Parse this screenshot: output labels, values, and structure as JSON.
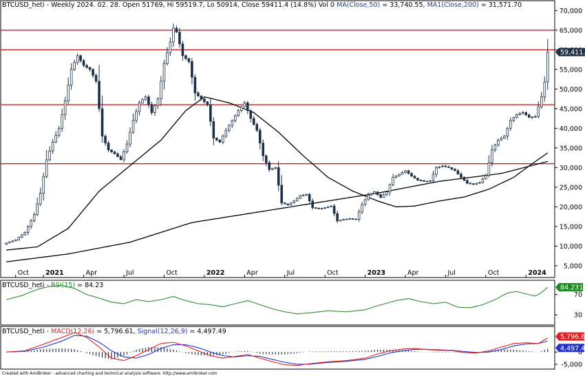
{
  "header": {
    "symbol": "BTCUSD_heti",
    "info": " - Weekly 2024. 02. 28. Open 51769, Hi 59519.7, Lo 50914, Close 59411.4 (14.8%) Vol 0 ",
    "ma50_label": "MA(Close,50)",
    "ma50_value": " = 33,740.55, ",
    "ma200_label": "MA1(Close,200)",
    "ma200_value": " = 31,571.70"
  },
  "colors": {
    "candle_up": "#ffffff",
    "candle_down": "#1e3048",
    "candle_outline": "#1e3048",
    "ma": "#000000",
    "hline": "#d21e1e",
    "rsi": "#2e8b2e",
    "macd": "#dd2222",
    "signal": "#2233cc",
    "hist": "#1e3048",
    "price_badge": "#1e3048",
    "rsi_badge": "#1a8a1a",
    "macd_badge": "#dd2222",
    "signal_badge": "#2233cc"
  },
  "rsi_header": {
    "symbol": "BTCUSD_heti",
    "sep": " - ",
    "label": "RSI(15)",
    "value": " = 84.23"
  },
  "macd_header": {
    "symbol": "BTCUSD_heti",
    "sep": " - ",
    "macd_label": "MACD(12,26)",
    "macd_value": " = 5,796.61, ",
    "signal_label": "Signal(12,26,9)",
    "signal_value": " = 4,497.49"
  },
  "footer": "Created with AmiBroker - advanced charting and technical analysis software. http://www.amibroker.com",
  "chart_data": {
    "type": "candlestick",
    "x_axis": {
      "labels": [
        {
          "t": "Oct",
          "w": 3,
          "bold": false
        },
        {
          "t": "2021",
          "w": 12,
          "bold": true
        },
        {
          "t": "Apr",
          "w": 25,
          "bold": false
        },
        {
          "t": "Jul",
          "w": 38,
          "bold": false
        },
        {
          "t": "Oct",
          "w": 51,
          "bold": false
        },
        {
          "t": "2022",
          "w": 64,
          "bold": true
        },
        {
          "t": "Apr",
          "w": 77,
          "bold": false
        },
        {
          "t": "Jul",
          "w": 90,
          "bold": false
        },
        {
          "t": "Oct",
          "w": 103,
          "bold": false
        },
        {
          "t": "2023",
          "w": 116,
          "bold": true
        },
        {
          "t": "Apr",
          "w": 129,
          "bold": false
        },
        {
          "t": "Jul",
          "w": 142,
          "bold": false
        },
        {
          "t": "Oct",
          "w": 155,
          "bold": false
        },
        {
          "t": "2024",
          "w": 168,
          "bold": true
        }
      ],
      "weeks_total": 176
    },
    "price_axis": {
      "ticks": [
        5000,
        10000,
        15000,
        20000,
        25000,
        30000,
        35000,
        40000,
        45000,
        50000,
        55000,
        60000,
        65000,
        70000
      ],
      "min": 2000,
      "max": 72500
    },
    "horizontal_lines": [
      65000,
      60000,
      46000,
      31000
    ],
    "last_price_label": "59,411.4",
    "close_keypoints": [
      [
        0,
        10800
      ],
      [
        3,
        11600
      ],
      [
        6,
        13500
      ],
      [
        9,
        18000
      ],
      [
        11,
        23500
      ],
      [
        13,
        32000
      ],
      [
        15,
        36500
      ],
      [
        17,
        40000
      ],
      [
        19,
        47000
      ],
      [
        21,
        55000
      ],
      [
        23,
        58500
      ],
      [
        25,
        56000
      ],
      [
        27,
        55000
      ],
      [
        29,
        52000
      ],
      [
        31,
        38000
      ],
      [
        33,
        34500
      ],
      [
        35,
        33500
      ],
      [
        37,
        32000
      ],
      [
        39,
        36000
      ],
      [
        41,
        42000
      ],
      [
        43,
        46500
      ],
      [
        45,
        48000
      ],
      [
        47,
        44000
      ],
      [
        49,
        47500
      ],
      [
        51,
        56500
      ],
      [
        53,
        62000
      ],
      [
        54,
        65500
      ],
      [
        55,
        64500
      ],
      [
        57,
        58500
      ],
      [
        59,
        57000
      ],
      [
        61,
        49000
      ],
      [
        63,
        47500
      ],
      [
        65,
        46000
      ],
      [
        67,
        37500
      ],
      [
        69,
        36500
      ],
      [
        71,
        39500
      ],
      [
        73,
        42000
      ],
      [
        75,
        44500
      ],
      [
        77,
        46500
      ],
      [
        79,
        42500
      ],
      [
        81,
        39500
      ],
      [
        83,
        33000
      ],
      [
        85,
        29500
      ],
      [
        87,
        30000
      ],
      [
        89,
        21000
      ],
      [
        91,
        20500
      ],
      [
        93,
        21500
      ],
      [
        95,
        22800
      ],
      [
        97,
        23200
      ],
      [
        99,
        19800
      ],
      [
        101,
        19500
      ],
      [
        103,
        19800
      ],
      [
        105,
        20200
      ],
      [
        107,
        16400
      ],
      [
        109,
        16800
      ],
      [
        111,
        17000
      ],
      [
        113,
        16800
      ],
      [
        115,
        20600
      ],
      [
        117,
        23000
      ],
      [
        119,
        23800
      ],
      [
        121,
        22400
      ],
      [
        123,
        23800
      ],
      [
        125,
        27500
      ],
      [
        127,
        28300
      ],
      [
        129,
        29200
      ],
      [
        131,
        27800
      ],
      [
        133,
        26800
      ],
      [
        135,
        26500
      ],
      [
        137,
        26600
      ],
      [
        139,
        30000
      ],
      [
        141,
        30400
      ],
      [
        143,
        30000
      ],
      [
        145,
        29200
      ],
      [
        147,
        27500
      ],
      [
        149,
        26000
      ],
      [
        151,
        25800
      ],
      [
        153,
        26200
      ],
      [
        155,
        28000
      ],
      [
        157,
        34500
      ],
      [
        159,
        37000
      ],
      [
        161,
        38000
      ],
      [
        163,
        42000
      ],
      [
        165,
        43500
      ],
      [
        167,
        44000
      ],
      [
        169,
        42800
      ],
      [
        171,
        43000
      ],
      [
        173,
        48000
      ],
      [
        174,
        51800
      ],
      [
        175,
        59411
      ]
    ],
    "ma50_keypoints": [
      [
        0,
        9000
      ],
      [
        10,
        9800
      ],
      [
        20,
        14500
      ],
      [
        30,
        24000
      ],
      [
        40,
        30500
      ],
      [
        50,
        37000
      ],
      [
        58,
        44500
      ],
      [
        64,
        48000
      ],
      [
        72,
        46500
      ],
      [
        80,
        44000
      ],
      [
        88,
        39000
      ],
      [
        96,
        33000
      ],
      [
        104,
        27500
      ],
      [
        112,
        24000
      ],
      [
        120,
        21500
      ],
      [
        126,
        20000
      ],
      [
        132,
        20200
      ],
      [
        140,
        21500
      ],
      [
        148,
        22500
      ],
      [
        156,
        24500
      ],
      [
        164,
        27500
      ],
      [
        170,
        31000
      ],
      [
        175,
        33740
      ]
    ],
    "ma200_keypoints": [
      [
        0,
        6000
      ],
      [
        20,
        8000
      ],
      [
        40,
        11000
      ],
      [
        60,
        16000
      ],
      [
        80,
        18500
      ],
      [
        100,
        21000
      ],
      [
        120,
        23500
      ],
      [
        140,
        26500
      ],
      [
        160,
        28500
      ],
      [
        175,
        31571
      ]
    ],
    "rsi": {
      "label": "RSI(15)",
      "value": 84.23,
      "last_label": "84.231",
      "ticks": [
        30,
        70
      ],
      "range": [
        10,
        98
      ],
      "keypoints": [
        [
          0,
          60
        ],
        [
          5,
          68
        ],
        [
          10,
          80
        ],
        [
          14,
          86
        ],
        [
          18,
          88
        ],
        [
          22,
          82
        ],
        [
          26,
          70
        ],
        [
          30,
          63
        ],
        [
          34,
          55
        ],
        [
          38,
          52
        ],
        [
          42,
          60
        ],
        [
          46,
          56
        ],
        [
          50,
          60
        ],
        [
          54,
          66
        ],
        [
          58,
          58
        ],
        [
          62,
          52
        ],
        [
          66,
          50
        ],
        [
          70,
          46
        ],
        [
          74,
          52
        ],
        [
          78,
          58
        ],
        [
          82,
          50
        ],
        [
          86,
          42
        ],
        [
          90,
          36
        ],
        [
          94,
          32
        ],
        [
          98,
          34
        ],
        [
          104,
          38
        ],
        [
          110,
          36
        ],
        [
          116,
          40
        ],
        [
          120,
          48
        ],
        [
          126,
          58
        ],
        [
          130,
          62
        ],
        [
          134,
          56
        ],
        [
          138,
          52
        ],
        [
          142,
          55
        ],
        [
          146,
          45
        ],
        [
          150,
          44
        ],
        [
          154,
          50
        ],
        [
          158,
          60
        ],
        [
          162,
          73
        ],
        [
          165,
          76
        ],
        [
          168,
          71
        ],
        [
          171,
          67
        ],
        [
          173,
          74
        ],
        [
          175,
          84.23
        ]
      ]
    },
    "macd": {
      "label": "MACD(12,26)",
      "value": 5796.61,
      "last_label": "5,796.61",
      "signal_label": "Signal(12,26,9)",
      "signal_value": 4497.49,
      "signal_last_label": "4,497.49",
      "ticks": [
        0,
        -5000
      ],
      "range": [
        -7000,
        10500
      ],
      "macd_keypoints": [
        [
          0,
          0
        ],
        [
          6,
          500
        ],
        [
          12,
          3200
        ],
        [
          18,
          6000
        ],
        [
          22,
          8000
        ],
        [
          26,
          6000
        ],
        [
          30,
          2000
        ],
        [
          34,
          -2500
        ],
        [
          38,
          -3500
        ],
        [
          42,
          -1500
        ],
        [
          46,
          1000
        ],
        [
          50,
          3500
        ],
        [
          54,
          4000
        ],
        [
          58,
          2500
        ],
        [
          62,
          500
        ],
        [
          66,
          -1500
        ],
        [
          70,
          -2500
        ],
        [
          74,
          -1800
        ],
        [
          78,
          -1000
        ],
        [
          82,
          -2500
        ],
        [
          86,
          -4000
        ],
        [
          90,
          -5200
        ],
        [
          94,
          -5500
        ],
        [
          98,
          -4800
        ],
        [
          104,
          -4000
        ],
        [
          110,
          -3500
        ],
        [
          116,
          -2500
        ],
        [
          120,
          -800
        ],
        [
          124,
          500
        ],
        [
          128,
          1200
        ],
        [
          132,
          1500
        ],
        [
          136,
          1000
        ],
        [
          140,
          700
        ],
        [
          144,
          600
        ],
        [
          148,
          -200
        ],
        [
          152,
          -400
        ],
        [
          156,
          500
        ],
        [
          160,
          2000
        ],
        [
          164,
          3500
        ],
        [
          168,
          3800
        ],
        [
          172,
          3500
        ],
        [
          175,
          5796.61
        ]
      ],
      "signal_keypoints": [
        [
          0,
          0
        ],
        [
          6,
          300
        ],
        [
          12,
          2000
        ],
        [
          18,
          4500
        ],
        [
          22,
          6800
        ],
        [
          26,
          6500
        ],
        [
          30,
          4000
        ],
        [
          34,
          500
        ],
        [
          38,
          -2000
        ],
        [
          42,
          -2500
        ],
        [
          46,
          -1000
        ],
        [
          50,
          1500
        ],
        [
          54,
          3000
        ],
        [
          58,
          3000
        ],
        [
          62,
          1800
        ],
        [
          66,
          0
        ],
        [
          70,
          -1500
        ],
        [
          74,
          -2000
        ],
        [
          78,
          -1500
        ],
        [
          82,
          -1800
        ],
        [
          86,
          -3000
        ],
        [
          90,
          -4200
        ],
        [
          94,
          -5000
        ],
        [
          98,
          -5000
        ],
        [
          104,
          -4300
        ],
        [
          110,
          -3800
        ],
        [
          116,
          -3000
        ],
        [
          120,
          -1800
        ],
        [
          124,
          -400
        ],
        [
          128,
          500
        ],
        [
          132,
          1100
        ],
        [
          136,
          1100
        ],
        [
          140,
          900
        ],
        [
          144,
          700
        ],
        [
          148,
          200
        ],
        [
          152,
          -200
        ],
        [
          156,
          0
        ],
        [
          160,
          1000
        ],
        [
          164,
          2500
        ],
        [
          168,
          3300
        ],
        [
          172,
          3500
        ],
        [
          175,
          4497.49
        ]
      ]
    }
  }
}
